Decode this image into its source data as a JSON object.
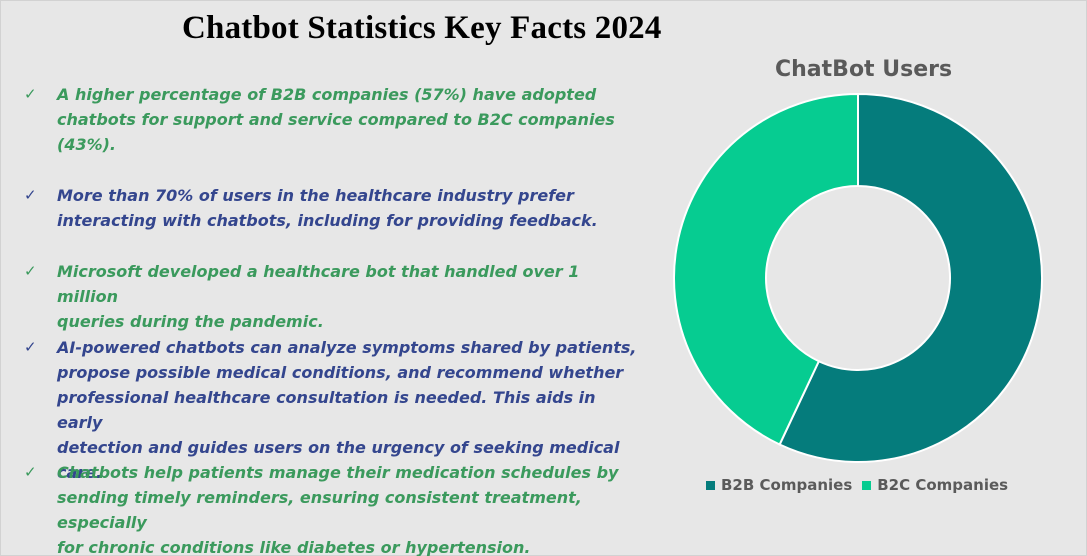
{
  "title": "Chatbot Statistics Key Facts 2024",
  "facts": [
    {
      "text": "A higher percentage of B2B companies (57%) have adopted\nchatbots for support and service compared to B2C companies\n(43%).",
      "color": "#3b9a5d"
    },
    {
      "text": "More than 70% of users in the healthcare industry prefer\ninteracting with chatbots, including for providing feedback.",
      "color": "#34468e"
    },
    {
      "text": "Microsoft developed a healthcare bot that handled over 1 million\nqueries during the pandemic.",
      "color": "#3b9a5d"
    },
    {
      "text": "AI-powered chatbots can analyze symptoms shared by patients,\npropose possible medical conditions, and recommend whether\nprofessional healthcare consultation is needed. This aids in early\ndetection and guides users on the urgency of seeking medical care.",
      "color": "#34468e"
    },
    {
      "text": "Chatbots help patients manage their medication schedules by\nsending timely reminders, ensuring consistent treatment, especially\nfor chronic conditions like diabetes or hypertension.",
      "color": "#3b9a5d"
    }
  ],
  "chart_data": {
    "type": "pie",
    "title": "ChatBot Users",
    "categories": [
      "B2B Companies",
      "B2C Companies"
    ],
    "values": [
      57,
      43
    ],
    "colors": [
      "#057c7c",
      "#06cc91"
    ],
    "legend": "bottom",
    "donut": true
  }
}
